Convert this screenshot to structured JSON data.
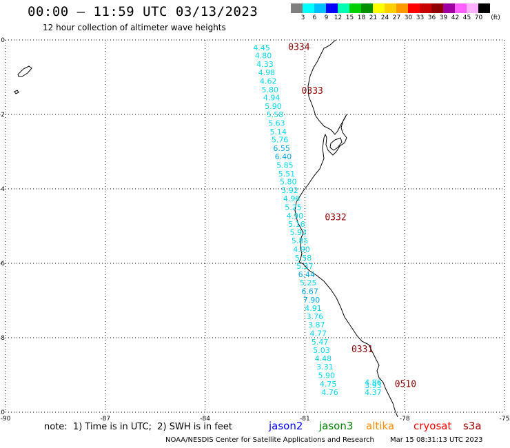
{
  "header": {
    "title": "00:00 — 11:59 UTC 03/13/2023",
    "subtitle": "12 hour collection of altimeter wave heights"
  },
  "color_scale": {
    "unit": "(ft)",
    "colors": [
      "#808080",
      "#00ffff",
      "#00bfff",
      "#0000ff",
      "#00ffb0",
      "#00d000",
      "#009000",
      "#ffff00",
      "#ffd000",
      "#ff9900",
      "#ff0000",
      "#c80000",
      "#900000",
      "#a000a0",
      "#ff60ff",
      "#ffb0ff",
      "#000000"
    ],
    "labels": [
      "3",
      "6",
      "9",
      "12",
      "15",
      "18",
      "21",
      "24",
      "27",
      "30",
      "33",
      "36",
      "39",
      "42",
      "45",
      "70"
    ]
  },
  "axes": {
    "x_ticks": [
      "-90",
      "-87",
      "-84",
      "-81",
      "-78",
      "-75"
    ],
    "y_ticks": [
      "0",
      "-2",
      "-4",
      "-6",
      "-8",
      "-10"
    ]
  },
  "chart_data": {
    "type": "scatter",
    "xlim": [
      -90,
      -75
    ],
    "ylim": [
      -10,
      0
    ],
    "grid": true,
    "series": [
      {
        "name": "jason2",
        "points": [
          {
            "lon": -82.3,
            "lat": -0.2,
            "swh": "4.45"
          },
          {
            "lon": -82.25,
            "lat": -0.42,
            "swh": "4.80"
          },
          {
            "lon": -82.2,
            "lat": -0.65,
            "swh": "4.33"
          },
          {
            "lon": -82.15,
            "lat": -0.87,
            "swh": "4.98"
          },
          {
            "lon": -82.1,
            "lat": -1.1,
            "swh": "4.62"
          },
          {
            "lon": -82.05,
            "lat": -1.33,
            "swh": "5.80"
          },
          {
            "lon": -82.0,
            "lat": -1.55,
            "swh": "4.94"
          },
          {
            "lon": -81.95,
            "lat": -1.78,
            "swh": "5.90"
          },
          {
            "lon": -81.9,
            "lat": -2.0,
            "swh": "5.58"
          },
          {
            "lon": -81.85,
            "lat": -2.23,
            "swh": "5.63"
          },
          {
            "lon": -81.8,
            "lat": -2.46,
            "swh": "5.14"
          },
          {
            "lon": -81.75,
            "lat": -2.68,
            "swh": "5.76"
          },
          {
            "lon": -81.7,
            "lat": -2.91,
            "swh": "6.55"
          },
          {
            "lon": -81.65,
            "lat": -3.13,
            "swh": "6.40"
          },
          {
            "lon": -81.6,
            "lat": -3.36,
            "swh": "5.85"
          },
          {
            "lon": -81.55,
            "lat": -3.59,
            "swh": "5.51"
          },
          {
            "lon": -81.5,
            "lat": -3.81,
            "swh": "5.80"
          },
          {
            "lon": -81.45,
            "lat": -4.04,
            "swh": "5.92"
          },
          {
            "lon": -81.4,
            "lat": -4.26,
            "swh": "4.96"
          },
          {
            "lon": -81.35,
            "lat": -4.49,
            "swh": "5.25"
          },
          {
            "lon": -81.3,
            "lat": -4.72,
            "swh": "4.90"
          },
          {
            "lon": -81.25,
            "lat": -4.94,
            "swh": "5.16"
          },
          {
            "lon": -81.2,
            "lat": -5.17,
            "swh": "5.93"
          },
          {
            "lon": -81.15,
            "lat": -5.39,
            "swh": "5.85"
          },
          {
            "lon": -81.1,
            "lat": -5.62,
            "swh": "4.90"
          },
          {
            "lon": -81.05,
            "lat": -5.85,
            "swh": "5.58"
          },
          {
            "lon": -81.0,
            "lat": -6.07,
            "swh": "5.37"
          },
          {
            "lon": -80.95,
            "lat": -6.3,
            "swh": "6.44"
          },
          {
            "lon": -80.9,
            "lat": -6.52,
            "swh": "5.25"
          },
          {
            "lon": -80.85,
            "lat": -6.75,
            "swh": "6.67"
          },
          {
            "lon": -80.8,
            "lat": -6.98,
            "swh": "7.90"
          },
          {
            "lon": -80.75,
            "lat": -7.2,
            "swh": "4.91"
          },
          {
            "lon": -80.7,
            "lat": -7.43,
            "swh": "3.76"
          },
          {
            "lon": -80.65,
            "lat": -7.65,
            "swh": "3.87"
          },
          {
            "lon": -80.6,
            "lat": -7.88,
            "swh": "4.77"
          },
          {
            "lon": -80.55,
            "lat": -8.11,
            "swh": "5.47"
          },
          {
            "lon": -80.5,
            "lat": -8.33,
            "swh": "5.03"
          },
          {
            "lon": -80.45,
            "lat": -8.56,
            "swh": "4.48"
          },
          {
            "lon": -80.4,
            "lat": -8.78,
            "swh": "3.31"
          },
          {
            "lon": -80.35,
            "lat": -9.01,
            "swh": "5.90"
          },
          {
            "lon": -80.3,
            "lat": -9.24,
            "swh": "4.75"
          },
          {
            "lon": -80.25,
            "lat": -9.46,
            "swh": "4.76"
          },
          {
            "lon": -78.95,
            "lat": -9.19,
            "swh": "4.86"
          },
          {
            "lon": -78.95,
            "lat": -9.28,
            "swh": "3.93"
          },
          {
            "lon": -78.95,
            "lat": -9.46,
            "swh": "4.37"
          }
        ],
        "time_labels": [
          {
            "lon": -81.5,
            "lat": -0.18,
            "text": "0334"
          },
          {
            "lon": -81.1,
            "lat": -1.35,
            "text": "0333"
          },
          {
            "lon": -80.4,
            "lat": -4.75,
            "text": "0332"
          },
          {
            "lon": -79.6,
            "lat": -8.3,
            "text": "0331"
          },
          {
            "lon": -78.3,
            "lat": -9.23,
            "text": "0510"
          }
        ]
      }
    ]
  },
  "legend": {
    "note": "note:  1) Time is in UTC;  2) SWH is in feet",
    "items": [
      {
        "label": "jason2",
        "color": "#0000ff"
      },
      {
        "label": "jason3",
        "color": "#008000"
      },
      {
        "label": "altika",
        "color": "#ff8c00"
      },
      {
        "label": "cryosat",
        "color": "#ff0000"
      },
      {
        "label": "s3a",
        "color": "#a00000"
      }
    ]
  },
  "footer": {
    "credit": "NOAA/NESDIS Center for Satellite Applications and Research",
    "timestamp": "Mar 15 08:31:13 UTC 2023"
  }
}
